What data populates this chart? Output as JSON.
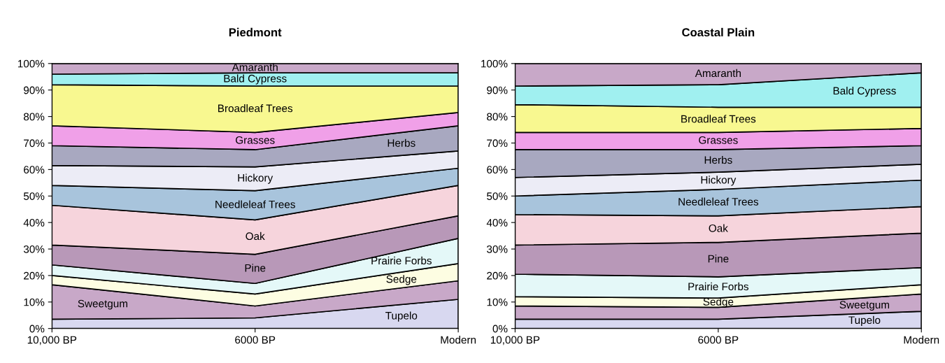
{
  "chart_data": [
    {
      "type": "area",
      "stacked": true,
      "title": "Piedmont",
      "categories": [
        "10,000 BP",
        "6000 BP",
        "Modern"
      ],
      "ylim": [
        0,
        100
      ],
      "yticks": [
        {
          "value": 0,
          "label": "0%"
        },
        {
          "value": 10,
          "label": "10%"
        },
        {
          "value": 20,
          "label": "20%"
        },
        {
          "value": 30,
          "label": "30%"
        },
        {
          "value": 40,
          "label": "40%"
        },
        {
          "value": 50,
          "label": "50%"
        },
        {
          "value": 60,
          "label": "60%"
        },
        {
          "value": 70,
          "label": "70%"
        },
        {
          "value": 80,
          "label": "80%"
        },
        {
          "value": 90,
          "label": "90%"
        },
        {
          "value": 100,
          "label": "100%"
        }
      ],
      "series": [
        {
          "name": "Tupelo",
          "color": "#d8d8f0",
          "values": [
            3.5,
            4,
            11
          ]
        },
        {
          "name": "Sweetgum",
          "color": "#c8a8c8",
          "values": [
            13,
            4.5,
            7
          ]
        },
        {
          "name": "Sedge",
          "color": "#fdfde2",
          "values": [
            3.5,
            4.5,
            6.5
          ]
        },
        {
          "name": "Prairie Forbs",
          "color": "#e4f8f8",
          "values": [
            4,
            4,
            9.5
          ]
        },
        {
          "name": "Pine",
          "color": "#b898b8",
          "values": [
            7.5,
            11,
            8.5
          ]
        },
        {
          "name": "Oak",
          "color": "#f6d4dc",
          "values": [
            15,
            13,
            11.5
          ]
        },
        {
          "name": "Needleleaf Trees",
          "color": "#a8c4dc",
          "values": [
            7.5,
            11,
            6.5
          ]
        },
        {
          "name": "Hickory",
          "color": "#ececf6",
          "values": [
            7.5,
            9,
            6.5
          ]
        },
        {
          "name": "Herbs",
          "color": "#a8a8c0",
          "values": [
            7.5,
            6.5,
            9.5
          ]
        },
        {
          "name": "Grasses",
          "color": "#f0a0e8",
          "values": [
            7.5,
            6.5,
            5
          ]
        },
        {
          "name": "Broadleaf Trees",
          "color": "#f8f890",
          "values": [
            15.5,
            17.5,
            10
          ]
        },
        {
          "name": "Bald Cypress",
          "color": "#a0f0f0",
          "values": [
            4,
            5,
            5
          ]
        },
        {
          "name": "Amaranth",
          "color": "#c8a8c8",
          "values": [
            4,
            3.5,
            3.5
          ]
        }
      ]
    },
    {
      "type": "area",
      "stacked": true,
      "title": "Coastal Plain",
      "categories": [
        "10,000 BP",
        "6000 BP",
        "Modern"
      ],
      "ylim": [
        0,
        100
      ],
      "yticks": [
        {
          "value": 0,
          "label": "0%"
        },
        {
          "value": 10,
          "label": "10%"
        },
        {
          "value": 20,
          "label": "20%"
        },
        {
          "value": 30,
          "label": "30%"
        },
        {
          "value": 40,
          "label": "40%"
        },
        {
          "value": 50,
          "label": "50%"
        },
        {
          "value": 60,
          "label": "60%"
        },
        {
          "value": 70,
          "label": "70%"
        },
        {
          "value": 80,
          "label": "80%"
        },
        {
          "value": 90,
          "label": "90%"
        },
        {
          "value": 100,
          "label": "100%"
        }
      ],
      "series": [
        {
          "name": "Tupelo",
          "color": "#d8d8f0",
          "values": [
            3.5,
            3.5,
            6.5
          ]
        },
        {
          "name": "Sweetgum",
          "color": "#c8a8c8",
          "values": [
            5,
            4.5,
            6.5
          ]
        },
        {
          "name": "Sedge",
          "color": "#fdfde2",
          "values": [
            3.5,
            3.5,
            3.5
          ]
        },
        {
          "name": "Prairie Forbs",
          "color": "#e4f8f8",
          "values": [
            8.5,
            8,
            6.5
          ]
        },
        {
          "name": "Pine",
          "color": "#b898b8",
          "values": [
            11,
            13,
            13
          ]
        },
        {
          "name": "Oak",
          "color": "#f6d4dc",
          "values": [
            11.5,
            10,
            10
          ]
        },
        {
          "name": "Needleleaf Trees",
          "color": "#a8c4dc",
          "values": [
            7,
            10,
            10
          ]
        },
        {
          "name": "Hickory",
          "color": "#ececf6",
          "values": [
            7,
            6.5,
            6
          ]
        },
        {
          "name": "Herbs",
          "color": "#a8a8c0",
          "values": [
            10.5,
            8.5,
            7
          ]
        },
        {
          "name": "Grasses",
          "color": "#f0a0e8",
          "values": [
            6.5,
            6.5,
            6.5
          ]
        },
        {
          "name": "Broadleaf Trees",
          "color": "#f8f890",
          "values": [
            10.5,
            9.5,
            8
          ]
        },
        {
          "name": "Bald Cypress",
          "color": "#a0f0f0",
          "values": [
            7,
            8.5,
            13
          ]
        },
        {
          "name": "Amaranth",
          "color": "#c8a8c8",
          "values": [
            8.5,
            8,
            3.5
          ]
        }
      ]
    }
  ]
}
